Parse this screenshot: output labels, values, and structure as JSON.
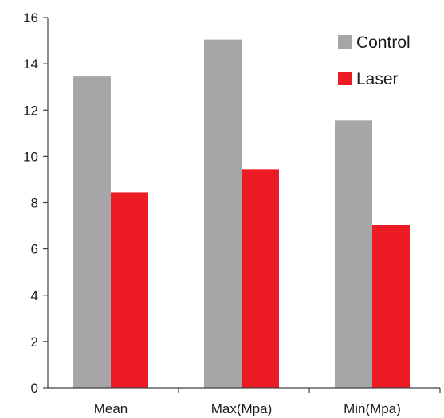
{
  "chart_data": {
    "type": "bar",
    "title": "",
    "xlabel": "",
    "ylabel": "",
    "categories": [
      "Mean",
      "Max(Mpa)",
      "Min(Mpa)"
    ],
    "series": [
      {
        "name": "Control",
        "values": [
          13.45,
          15.05,
          11.55
        ],
        "color": "#a6a6a8"
      },
      {
        "name": "Laser",
        "values": [
          8.45,
          9.45,
          7.05
        ],
        "color": "#ed1c24"
      }
    ],
    "ylim": [
      0,
      16
    ],
    "yticks": [
      "0",
      "2",
      "4",
      "6",
      "8",
      "10",
      "12",
      "14",
      "16"
    ],
    "grid": false,
    "legend_position": "top-right"
  }
}
